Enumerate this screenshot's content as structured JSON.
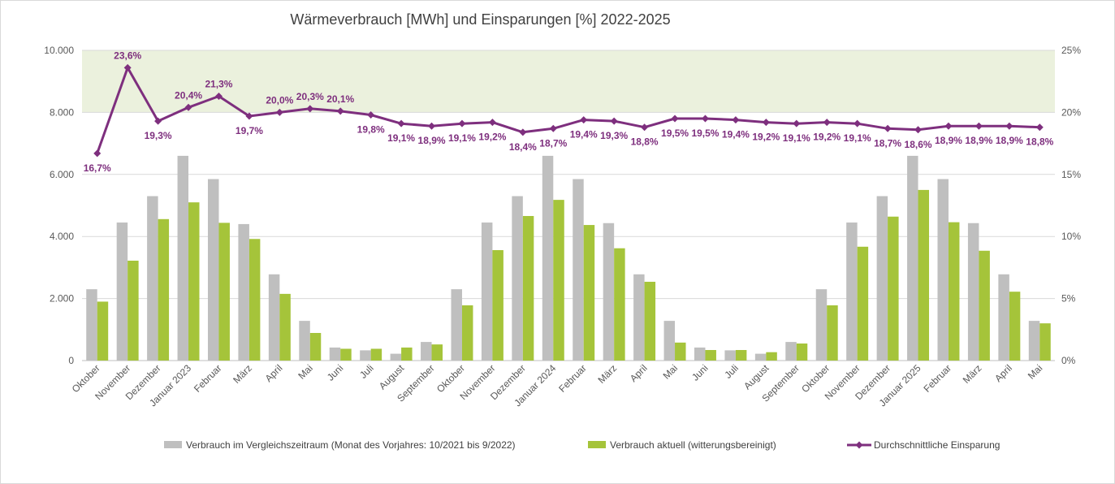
{
  "chart_data": {
    "type": "bar",
    "title": "Wärmeverbrauch [MWh] und Einsparungen [%] 2022-2025",
    "categories": [
      "Oktober",
      "November",
      "Dezember",
      "Januar 2023",
      "Februar",
      "März",
      "April",
      "Mai",
      "Juni",
      "Juli",
      "August",
      "September",
      "Oktober",
      "November",
      "Dezember",
      "Januar 2024",
      "Februar",
      "März",
      "April",
      "Mai",
      "Juni",
      "Juli",
      "August",
      "September",
      "Oktober",
      "November",
      "Dezember",
      "Januar 2025",
      "Februar",
      "März",
      "April",
      "Mai"
    ],
    "y_left": {
      "ylim": [
        0,
        10000
      ],
      "ticks": [
        0,
        2000,
        4000,
        6000,
        8000,
        10000
      ],
      "tick_labels": [
        "0",
        "2.000",
        "4.000",
        "6.000",
        "8.000",
        "10.000"
      ]
    },
    "y_right": {
      "ylim": [
        0,
        25
      ],
      "ticks": [
        0,
        5,
        10,
        15,
        20,
        25
      ],
      "tick_labels": [
        "0%",
        "5%",
        "10%",
        "15%",
        "20%",
        "25%"
      ]
    },
    "highlight_band": {
      "axis": "right",
      "from": 20,
      "to": 25,
      "color": "#ebf1dd"
    },
    "grid": true,
    "legend_position": "bottom",
    "series": [
      {
        "name": "Verbrauch im Vergleichszeitraum (Monat des Vorjahres: 10/2021 bis 9/2022)",
        "kind": "bar",
        "axis": "left",
        "color": "#bfbfbf",
        "values": [
          2300,
          4450,
          5300,
          6600,
          5850,
          4400,
          2780,
          1280,
          420,
          330,
          220,
          600,
          2300,
          4450,
          5300,
          6600,
          5850,
          4430,
          2780,
          1280,
          420,
          330,
          220,
          600,
          2300,
          4450,
          5300,
          6600,
          5850,
          4430,
          2780,
          1280
        ]
      },
      {
        "name": "Verbrauch aktuell (witterungsbereinigt)",
        "kind": "bar",
        "axis": "left",
        "color": "#a5c43a",
        "values": [
          1900,
          3220,
          4560,
          5100,
          4440,
          3920,
          2150,
          890,
          380,
          380,
          420,
          520,
          1780,
          3560,
          4660,
          5180,
          4370,
          3620,
          2540,
          580,
          340,
          340,
          270,
          550,
          1780,
          3670,
          4640,
          5500,
          4460,
          3540,
          2220,
          1200
        ]
      },
      {
        "name": "Durchschnittliche Einsparung",
        "kind": "line",
        "axis": "right",
        "color": "#7e2f7e",
        "values": [
          16.7,
          23.6,
          19.3,
          20.4,
          21.3,
          19.7,
          20.0,
          20.3,
          20.1,
          19.8,
          19.1,
          18.9,
          19.1,
          19.2,
          18.4,
          18.7,
          19.4,
          19.3,
          18.8,
          19.5,
          19.5,
          19.4,
          19.2,
          19.1,
          19.2,
          19.1,
          18.7,
          18.6,
          18.9,
          18.9,
          18.9,
          18.8
        ],
        "labels": [
          "16,7%",
          "23,6%",
          "19,3%",
          "20,4%",
          "21,3%",
          "19,7%",
          "20,0%",
          "20,3%",
          "20,1%",
          "19,8%",
          "19,1%",
          "18,9%",
          "19,1%",
          "19,2%",
          "18,4%",
          "18,7%",
          "19,4%",
          "19,3%",
          "18,8%",
          "19,5%",
          "19,5%",
          "19,4%",
          "19,2%",
          "19,1%",
          "19,2%",
          "19,1%",
          "18,7%",
          "18,6%",
          "18,9%",
          "18,9%",
          "18,9%",
          "18,8%"
        ],
        "label_positions": [
          "below",
          "above",
          "below",
          "above",
          "above",
          "below",
          "above",
          "above",
          "above",
          "below",
          "below",
          "below",
          "below",
          "below",
          "below",
          "below",
          "below",
          "below",
          "below",
          "below",
          "below",
          "below",
          "below",
          "below",
          "below",
          "below",
          "below",
          "below",
          "below",
          "below",
          "below",
          "below"
        ]
      }
    ]
  }
}
